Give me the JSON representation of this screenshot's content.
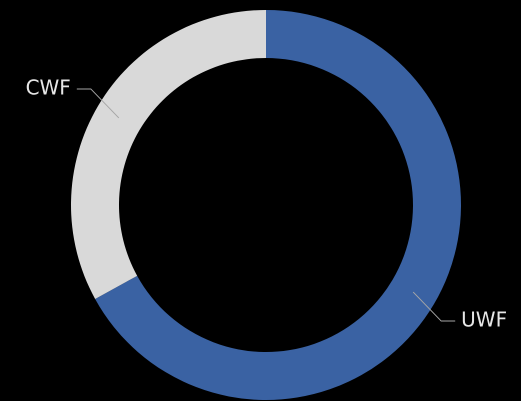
{
  "chart_data": {
    "type": "donut",
    "categories": [
      "UWF",
      "CWF"
    ],
    "values": [
      67,
      33
    ],
    "colors": [
      "#3a62a3",
      "#d9d9d9"
    ]
  }
}
